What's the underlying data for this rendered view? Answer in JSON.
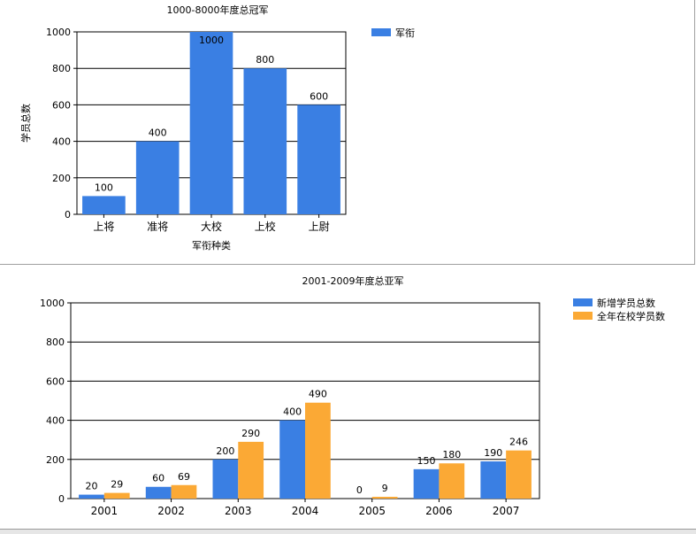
{
  "chart_data": [
    {
      "type": "bar",
      "title": "1000-8000年度总冠军",
      "xlabel": "军衔种类",
      "ylabel": "学员总数",
      "categories": [
        "上将",
        "准将",
        "大校",
        "上校",
        "上尉"
      ],
      "series": [
        {
          "name": "军衔",
          "color": "#3a7fe3",
          "values": [
            100,
            400,
            1000,
            800,
            600
          ]
        }
      ],
      "ylim": [
        0,
        1000
      ],
      "yticks": [
        0,
        200,
        400,
        600,
        800,
        1000
      ],
      "grid": true,
      "legend": "top-right",
      "show_data_labels": true
    },
    {
      "type": "bar",
      "title": "2001-2009年度总亚军",
      "xlabel": "",
      "ylabel": "",
      "categories": [
        "2001",
        "2002",
        "2003",
        "2004",
        "2005",
        "2006",
        "2007"
      ],
      "series": [
        {
          "name": "新增学员总数",
          "color": "#3a7fe3",
          "values": [
            20,
            60,
            200,
            400,
            0,
            150,
            190
          ]
        },
        {
          "name": "全年在校学员数",
          "color": "#fba935",
          "values": [
            29,
            69,
            290,
            490,
            9,
            180,
            246
          ]
        }
      ],
      "ylim": [
        0,
        1000
      ],
      "yticks": [
        0,
        200,
        400,
        600,
        800,
        1000
      ],
      "grid": true,
      "legend": "top-right",
      "show_data_labels": true
    }
  ]
}
